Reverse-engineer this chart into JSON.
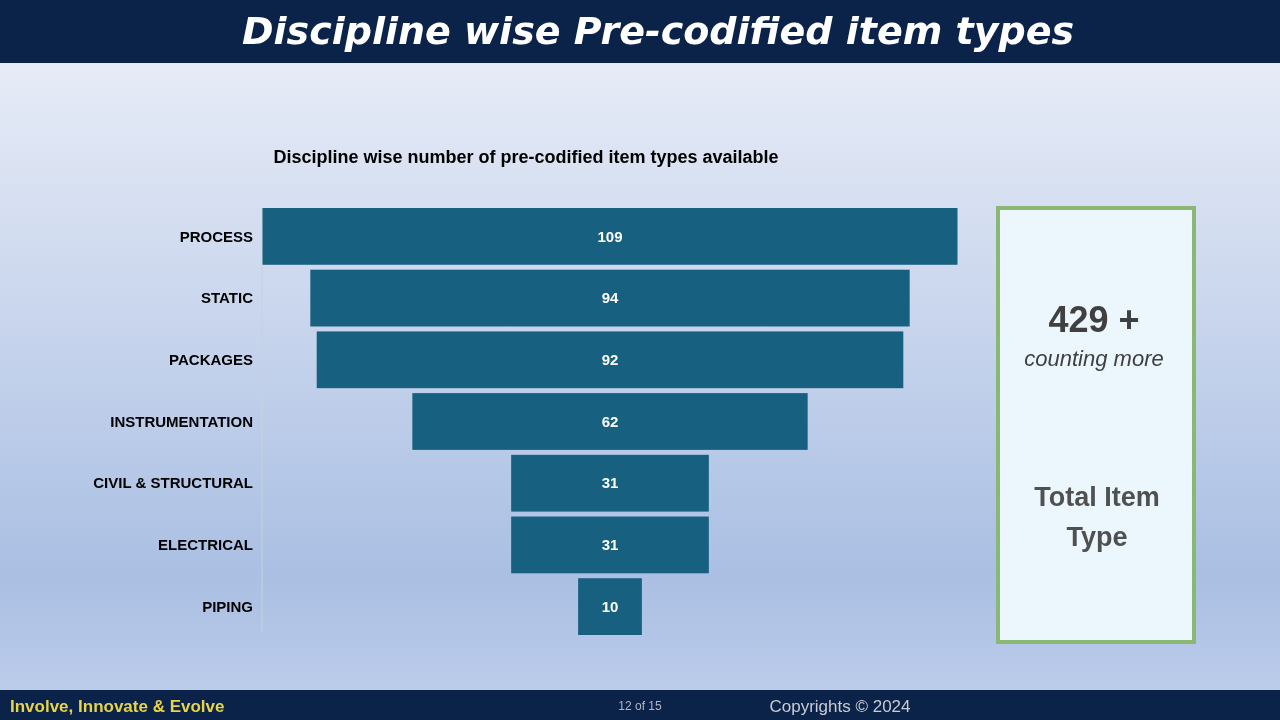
{
  "chart_data": {
    "type": "other",
    "title": "Discipline wise Pre-codified item types",
    "subtitle": "Discipline wise number of pre-codified item types available",
    "categories": [
      "PROCESS",
      "STATIC",
      "PACKAGES",
      "INSTRUMENTATION",
      "CIVIL & STRUCTURAL",
      "ELECTRICAL",
      "PIPING"
    ],
    "values": [
      109,
      94,
      92,
      62,
      31,
      31,
      10
    ],
    "color": "#17607f",
    "data_labels": true,
    "annotations": [
      "429 +",
      "counting more",
      "Total Item Type",
      "Involve, Innovate & Evolve",
      "12 of 15",
      "Copyrights © 2024"
    ]
  }
}
